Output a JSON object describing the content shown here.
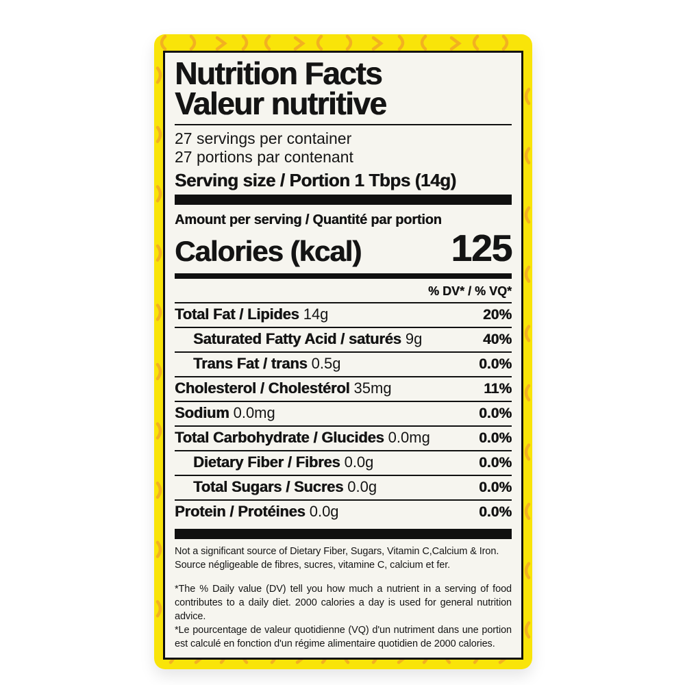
{
  "label": {
    "title_en": "Nutrition Facts",
    "title_fr": "Valeur nutritive",
    "servings_en": "27 servings per container",
    "servings_fr": "27 portions par contenant",
    "serving_size": "Serving size / Portion 1 Tbps (14g)",
    "amount_per_serving": "Amount per serving / Quantité par portion",
    "calories_label": "Calories (kcal)",
    "calories_value": "125",
    "dv_header": "% DV* / % VQ*",
    "rows": [
      {
        "name": "Total Fat / Lipides",
        "amount": "14g",
        "dv": "20%",
        "indent": false
      },
      {
        "name": "Saturated Fatty Acid / saturés",
        "amount": "9g",
        "dv": "40%",
        "indent": true
      },
      {
        "name": "Trans Fat / trans",
        "amount": "0.5g",
        "dv": "0.0%",
        "indent": true
      },
      {
        "name": "Cholesterol / Cholestérol",
        "amount": "35mg",
        "dv": "11%",
        "indent": false
      },
      {
        "name": "Sodium",
        "amount": "0.0mg",
        "dv": "0.0%",
        "indent": false
      },
      {
        "name": "Total Carbohydrate / Glucides",
        "amount": "0.0mg",
        "dv": "0.0%",
        "indent": false
      },
      {
        "name": "Dietary Fiber / Fibres",
        "amount": "0.0g",
        "dv": "0.0%",
        "indent": true
      },
      {
        "name": "Total Sugars / Sucres",
        "amount": "0.0g",
        "dv": "0.0%",
        "indent": true
      },
      {
        "name": "Protein / Protéines",
        "amount": "0.0g",
        "dv": "0.0%",
        "indent": false
      }
    ],
    "footnote_source_en": "Not a significant source of Dietary Fiber, Sugars, Vitamin C,Calcium & Iron.",
    "footnote_source_fr": "Source négligeable de fibres, sucres, vitamine C, calcium et fer.",
    "footnote_dv_en": "*The % Daily value (DV) tell you how much a nutrient in a serving of food contributes to a daily diet. 2000 calories a day is used for general nutrition advice.",
    "footnote_dv_fr": "*Le pourcentage de valeur quotidienne (VQ) d'un nutriment dans une portion est calculé en fonction d'un régime alimentaire quotidien de 2000 calories."
  },
  "colors": {
    "label_yellow": "#f9e409",
    "squiggle_orange": "#f0a427",
    "panel_white": "#f6f5ef",
    "text_black": "#141414"
  }
}
